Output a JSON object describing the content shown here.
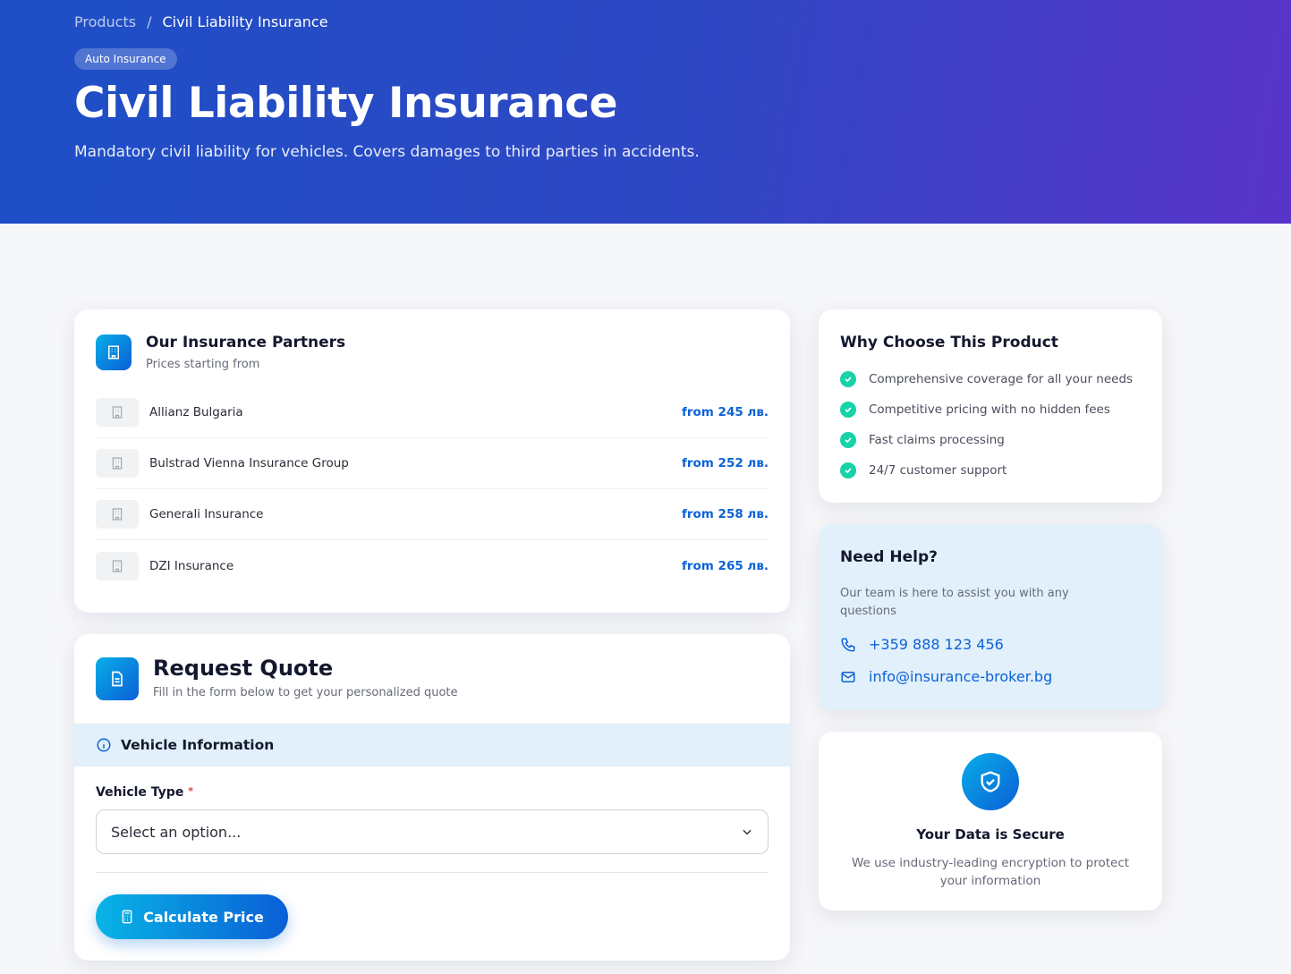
{
  "breadcrumb": {
    "items": [
      "Products",
      "Civil Liability Insurance"
    ],
    "separator": "/"
  },
  "hero": {
    "badge": "Auto Insurance",
    "title": "Civil Liability Insurance",
    "subtitle": "Mandatory civil liability for vehicles. Covers damages to third parties in accidents."
  },
  "partners": {
    "icon": "building-icon",
    "title": "Our Insurance Partners",
    "subtitle": "Prices starting from",
    "items": [
      {
        "name": "Allianz Bulgaria",
        "price": "from 245 лв."
      },
      {
        "name": "Bulstrad Vienna Insurance Group",
        "price": "from 252 лв."
      },
      {
        "name": "Generali Insurance",
        "price": "from 258 лв."
      },
      {
        "name": "DZI Insurance",
        "price": "from 265 лв."
      }
    ]
  },
  "quote": {
    "icon": "document-icon",
    "title": "Request Quote",
    "subtitle": "Fill in the form below to get your personalized quote",
    "section": "Vehicle Information",
    "field_label": "Vehicle Type",
    "required_mark": "*",
    "select_placeholder": "Select an option...",
    "button": "Calculate Price"
  },
  "why": {
    "title": "Why Choose This Product",
    "items": [
      "Comprehensive coverage for all your needs",
      "Competitive pricing with no hidden fees",
      "Fast claims processing",
      "24/7 customer support"
    ]
  },
  "help": {
    "title": "Need Help?",
    "text": "Our team is here to assist you with any questions",
    "phone": "+359 888 123 456",
    "email": "info@insurance-broker.bg"
  },
  "secure": {
    "icon": "shield-check-icon",
    "title": "Your Data is Secure",
    "text": "We use industry-leading encryption to protect your information"
  },
  "colors": {
    "accent": "#0c62d6",
    "check": "#16d3a8",
    "help_bg": "#e1f0fa"
  }
}
